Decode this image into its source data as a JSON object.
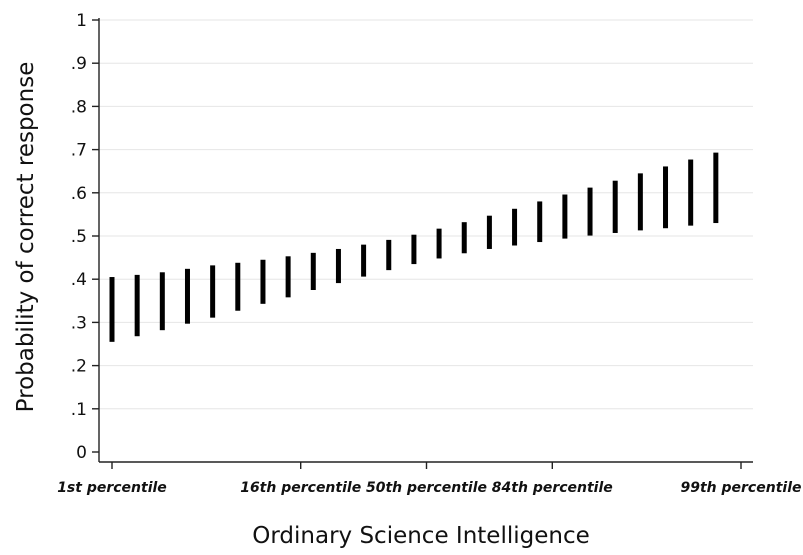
{
  "chart_data": {
    "type": "range-bar",
    "title": "",
    "xlabel": "Ordinary Science Intelligence",
    "ylabel": "Probability of correct response",
    "ylim": [
      0,
      1
    ],
    "yticks": [
      "0",
      ".1",
      ".2",
      ".3",
      ".4",
      ".5",
      ".6",
      ".7",
      ".8",
      ".9",
      "1"
    ],
    "ytick_values": [
      0,
      0.1,
      0.2,
      0.3,
      0.4,
      0.5,
      0.6,
      0.7,
      0.8,
      0.9,
      1
    ],
    "grid": "horizontal",
    "bar_color": "#000000",
    "xticks": [
      {
        "label": "1st percentile",
        "position": 0
      },
      {
        "label": "16th percentile",
        "position": 0.3
      },
      {
        "label": "50th percentile",
        "position": 0.5
      },
      {
        "label": "84th percentile",
        "position": 0.7
      },
      {
        "label": "99th percentile",
        "position": 1.0
      }
    ],
    "intervals": [
      {
        "x": 0.0,
        "low": 0.255,
        "high": 0.405
      },
      {
        "x": 0.04,
        "low": 0.268,
        "high": 0.41
      },
      {
        "x": 0.08,
        "low": 0.282,
        "high": 0.416
      },
      {
        "x": 0.12,
        "low": 0.297,
        "high": 0.424
      },
      {
        "x": 0.16,
        "low": 0.311,
        "high": 0.432
      },
      {
        "x": 0.2,
        "low": 0.327,
        "high": 0.438
      },
      {
        "x": 0.24,
        "low": 0.343,
        "high": 0.445
      },
      {
        "x": 0.28,
        "low": 0.358,
        "high": 0.453
      },
      {
        "x": 0.32,
        "low": 0.375,
        "high": 0.461
      },
      {
        "x": 0.36,
        "low": 0.391,
        "high": 0.47
      },
      {
        "x": 0.4,
        "low": 0.406,
        "high": 0.48
      },
      {
        "x": 0.44,
        "low": 0.421,
        "high": 0.491
      },
      {
        "x": 0.48,
        "low": 0.435,
        "high": 0.503
      },
      {
        "x": 0.52,
        "low": 0.448,
        "high": 0.517
      },
      {
        "x": 0.56,
        "low": 0.46,
        "high": 0.532
      },
      {
        "x": 0.6,
        "low": 0.47,
        "high": 0.547
      },
      {
        "x": 0.64,
        "low": 0.478,
        "high": 0.563
      },
      {
        "x": 0.68,
        "low": 0.486,
        "high": 0.58
      },
      {
        "x": 0.72,
        "low": 0.494,
        "high": 0.596
      },
      {
        "x": 0.76,
        "low": 0.501,
        "high": 0.612
      },
      {
        "x": 0.8,
        "low": 0.507,
        "high": 0.628
      },
      {
        "x": 0.84,
        "low": 0.513,
        "high": 0.645
      },
      {
        "x": 0.88,
        "low": 0.518,
        "high": 0.661
      },
      {
        "x": 0.92,
        "low": 0.524,
        "high": 0.677
      },
      {
        "x": 0.96,
        "low": 0.53,
        "high": 0.693
      }
    ]
  }
}
